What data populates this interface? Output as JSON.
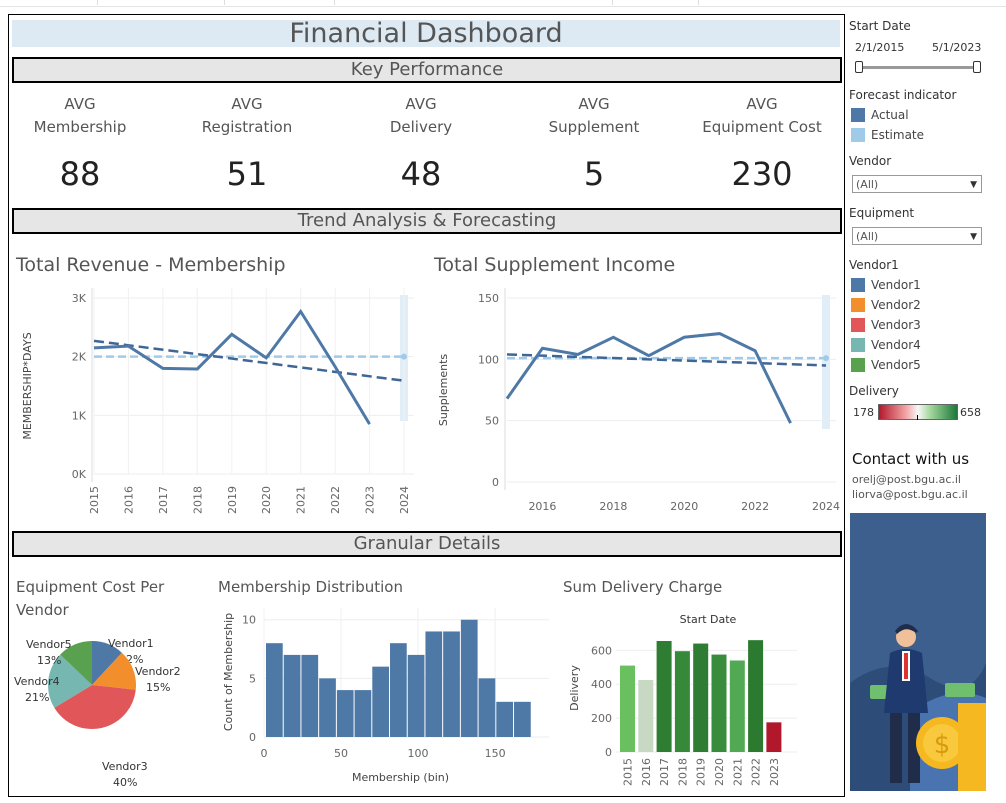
{
  "dashboard": {
    "title": "Financial Dashboard",
    "sections": {
      "kpi": "Key Performance",
      "trend": "Trend Analysis & Forecasting",
      "granular": "Granular Details"
    },
    "kpis": [
      {
        "line1": "AVG",
        "line2": "Membership",
        "value": "88"
      },
      {
        "line1": "AVG",
        "line2": "Registration",
        "value": "51"
      },
      {
        "line1": "AVG",
        "line2": "Delivery",
        "value": "48"
      },
      {
        "line1": "AVG",
        "line2": "Supplement",
        "value": "5"
      },
      {
        "line1": "AVG",
        "line2": "Equipment Cost",
        "value": "230"
      }
    ]
  },
  "sidebar": {
    "start_date_label": "Start Date",
    "start_date_from": "2/1/2015",
    "start_date_to": "5/1/2023",
    "slider_from": 0.0,
    "slider_to": 1.0,
    "forecast_label": "Forecast indicator",
    "forecast_items": [
      {
        "label": "Actual",
        "color": "#4e79a7"
      },
      {
        "label": "Estimate",
        "color": "#a0cbe8"
      }
    ],
    "vendor_label": "Vendor",
    "vendor_value": "(All)",
    "equipment_label": "Equipment",
    "equipment_value": "(All)",
    "vendor1_label": "Vendor1",
    "vendor_items": [
      {
        "label": "Vendor1",
        "color": "#4e79a7"
      },
      {
        "label": "Vendor2",
        "color": "#f28e2b"
      },
      {
        "label": "Vendor3",
        "color": "#e15759"
      },
      {
        "label": "Vendor4",
        "color": "#76b7b2"
      },
      {
        "label": "Vendor5",
        "color": "#59a14f"
      }
    ],
    "delivery_label": "Delivery",
    "delivery_min": "178",
    "delivery_max": "658",
    "contact_title": "Contact with us",
    "contact_emails": [
      "orelj@post.bgu.ac.il",
      "liorva@post.bgu.ac.il"
    ]
  },
  "chart_data": [
    {
      "type": "line",
      "title": "Total Revenue - Membership",
      "xlabel": "",
      "ylabel": "MEMBERSHIP*DAYS",
      "x": [
        "2015",
        "2016",
        "2017",
        "2018",
        "2019",
        "2020",
        "2021",
        "2022",
        "2023",
        "2024"
      ],
      "y_ticks": [
        "0K",
        "1K",
        "2K",
        "3K"
      ],
      "ylim": [
        0,
        3000
      ],
      "series": [
        {
          "name": "Actual",
          "x": [
            2015,
            2016,
            2017,
            2018,
            2019,
            2020,
            2021,
            2022,
            2023
          ],
          "values": [
            2150,
            2180,
            1800,
            1790,
            2380,
            1980,
            2770,
            1830,
            850
          ]
        },
        {
          "name": "Estimate",
          "x": [
            2015,
            2024
          ],
          "values": [
            2000,
            2000
          ]
        }
      ],
      "trend_line": {
        "x": [
          2015,
          2024
        ],
        "values": [
          2270,
          1590
        ]
      },
      "forecast_band_x": 2024
    },
    {
      "type": "line",
      "title": "Total Supplement Income",
      "xlabel": "",
      "ylabel": "Supplements",
      "x_ticks": [
        "2016",
        "2018",
        "2020",
        "2022",
        "2024"
      ],
      "y_ticks": [
        "0",
        "50",
        "100",
        "150"
      ],
      "ylim": [
        0,
        150
      ],
      "series": [
        {
          "name": "Actual",
          "x": [
            2015,
            2016,
            2017,
            2018,
            2019,
            2020,
            2021,
            2022,
            2023
          ],
          "values": [
            68,
            109,
            104,
            118,
            103,
            118,
            121,
            107,
            48
          ]
        },
        {
          "name": "Estimate",
          "x": [
            2015,
            2024
          ],
          "values": [
            101,
            101
          ]
        }
      ],
      "trend_line": {
        "x": [
          2015,
          2024
        ],
        "values": [
          104,
          95
        ]
      },
      "forecast_band_x": 2024
    },
    {
      "type": "pie",
      "title": "Equipment Cost Per Vendor",
      "slices": [
        {
          "label": "Vendor1",
          "pct": "12%",
          "value": 12,
          "color": "#4e79a7"
        },
        {
          "label": "Vendor2",
          "pct": "15%",
          "value": 15,
          "color": "#f28e2b"
        },
        {
          "label": "Vendor3",
          "pct": "40%",
          "value": 40,
          "color": "#e15759"
        },
        {
          "label": "Vendor4",
          "pct": "21%",
          "value": 21,
          "color": "#76b7b2"
        },
        {
          "label": "Vendor5",
          "pct": "13%",
          "value": 13,
          "color": "#59a14f"
        }
      ]
    },
    {
      "type": "bar",
      "title": "Membership Distribution",
      "xlabel": "Membership (bin)",
      "ylabel": "Count of Membership",
      "x_ticks": [
        "0",
        "50",
        "100",
        "150"
      ],
      "y_ticks": [
        "0",
        "5",
        "10"
      ],
      "bin_width": 11.5,
      "values": [
        8,
        7,
        7,
        5,
        4,
        4,
        6,
        8,
        7,
        9,
        9,
        10,
        5,
        3,
        3
      ],
      "ylim": [
        0,
        11
      ],
      "color": "#4e79a7"
    },
    {
      "type": "bar",
      "title": "Sum Delivery Charge",
      "subtitle": "Start Date",
      "xlabel": "",
      "ylabel": "Delivery",
      "categories": [
        "2015",
        "2016",
        "2017",
        "2018",
        "2019",
        "2020",
        "2021",
        "2022",
        "2023"
      ],
      "values": [
        510,
        425,
        655,
        595,
        640,
        575,
        540,
        660,
        175
      ],
      "colors": [
        "#6abf5e",
        "#c7d9c3",
        "#2e7d32",
        "#37893a",
        "#2e7d32",
        "#3a8c3d",
        "#52a954",
        "#2b7a30",
        "#b2182b"
      ],
      "y_ticks": [
        "0",
        "200",
        "400",
        "600"
      ],
      "ylim": [
        0,
        720
      ]
    }
  ]
}
